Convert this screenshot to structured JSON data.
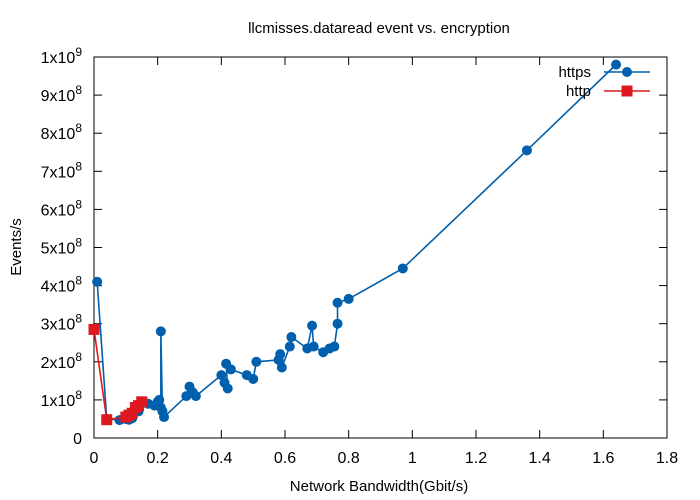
{
  "chart_data": {
    "type": "line",
    "title": "llcmisses.dataread event vs. encryption",
    "xlabel": "Network Bandwidth(Gbit/s)",
    "ylabel": "Events/s",
    "xlim": [
      0,
      1.8
    ],
    "ylim": [
      0,
      1000000000
    ],
    "x_ticks": [
      0,
      0.2,
      0.4,
      0.6,
      0.8,
      1,
      1.2,
      1.4,
      1.6,
      1.8
    ],
    "x_tick_labels": [
      "0",
      "0.2",
      "0.4",
      "0.6",
      "0.8",
      "1",
      "1.2",
      "1.4",
      "1.6",
      "1.8"
    ],
    "y_ticks": [
      {
        "value": 0,
        "mantissa": "0",
        "exp": ""
      },
      {
        "value": 100000000,
        "mantissa": "1x10",
        "exp": "8"
      },
      {
        "value": 200000000,
        "mantissa": "2x10",
        "exp": "8"
      },
      {
        "value": 300000000,
        "mantissa": "3x10",
        "exp": "8"
      },
      {
        "value": 400000000,
        "mantissa": "4x10",
        "exp": "8"
      },
      {
        "value": 500000000,
        "mantissa": "5x10",
        "exp": "8"
      },
      {
        "value": 600000000,
        "mantissa": "6x10",
        "exp": "8"
      },
      {
        "value": 700000000,
        "mantissa": "7x10",
        "exp": "8"
      },
      {
        "value": 800000000,
        "mantissa": "8x10",
        "exp": "8"
      },
      {
        "value": 900000000,
        "mantissa": "9x10",
        "exp": "8"
      },
      {
        "value": 1000000000,
        "mantissa": "1x10",
        "exp": "9"
      }
    ],
    "grid": false,
    "legend": "top-right",
    "series": [
      {
        "name": "https",
        "color": "#0060ad",
        "marker": "circle",
        "points": [
          [
            0.01,
            410000000
          ],
          [
            0.04,
            50000000
          ],
          [
            0.08,
            47000000
          ],
          [
            0.1,
            50000000
          ],
          [
            0.11,
            48000000
          ],
          [
            0.12,
            52000000
          ],
          [
            0.14,
            70000000
          ],
          [
            0.17,
            90000000
          ],
          [
            0.19,
            85000000
          ],
          [
            0.2,
            95000000
          ],
          [
            0.205,
            100000000
          ],
          [
            0.21,
            80000000
          ],
          [
            0.21,
            280000000
          ],
          [
            0.215,
            70000000
          ],
          [
            0.22,
            55000000
          ],
          [
            0.29,
            110000000
          ],
          [
            0.3,
            135000000
          ],
          [
            0.31,
            120000000
          ],
          [
            0.32,
            110000000
          ],
          [
            0.4,
            165000000
          ],
          [
            0.41,
            145000000
          ],
          [
            0.42,
            130000000
          ],
          [
            0.415,
            195000000
          ],
          [
            0.43,
            180000000
          ],
          [
            0.48,
            165000000
          ],
          [
            0.5,
            155000000
          ],
          [
            0.51,
            200000000
          ],
          [
            0.58,
            205000000
          ],
          [
            0.585,
            220000000
          ],
          [
            0.59,
            185000000
          ],
          [
            0.615,
            240000000
          ],
          [
            0.62,
            265000000
          ],
          [
            0.67,
            235000000
          ],
          [
            0.685,
            295000000
          ],
          [
            0.69,
            240000000
          ],
          [
            0.72,
            225000000
          ],
          [
            0.74,
            235000000
          ],
          [
            0.755,
            240000000
          ],
          [
            0.765,
            300000000
          ],
          [
            0.765,
            355000000
          ],
          [
            0.8,
            365000000
          ],
          [
            0.97,
            445000000
          ],
          [
            1.36,
            755000000
          ],
          [
            1.64,
            980000000
          ]
        ]
      },
      {
        "name": "http",
        "color": "#dd181f",
        "marker": "square",
        "points": [
          [
            0,
            285000000
          ],
          [
            0.04,
            48000000
          ],
          [
            0.1,
            55000000
          ],
          [
            0.11,
            60000000
          ],
          [
            0.12,
            65000000
          ],
          [
            0.13,
            80000000
          ],
          [
            0.14,
            85000000
          ],
          [
            0.15,
            95000000
          ]
        ]
      }
    ]
  }
}
